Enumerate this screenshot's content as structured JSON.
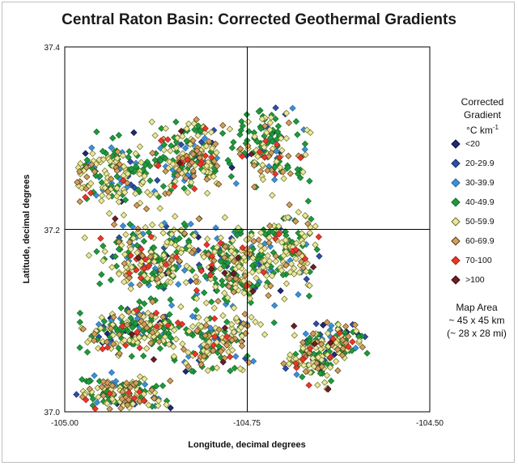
{
  "chart_data": {
    "type": "scatter",
    "title": "Central Raton Basin: Corrected Geothermal Gradients",
    "xlabel": "Longitude, decimal degrees",
    "ylabel": "Latitude, decimal degrees",
    "xlim": [
      -105.0,
      -104.5
    ],
    "ylim": [
      37.0,
      37.4
    ],
    "x_ticks": [
      "-105.00",
      "-104.75",
      "-104.50"
    ],
    "y_ticks": [
      "37.0",
      "37.2",
      "37.4"
    ],
    "reference_lines": {
      "longitude": -104.75,
      "latitude": 37.2
    },
    "legend": {
      "title_line1": "Corrected",
      "title_line2": "Gradient",
      "units_prefix": "°C km",
      "units_sup": "-1",
      "placement": "right"
    },
    "series": [
      {
        "name": "<20",
        "color": "#1f2a7a",
        "edge": "#111133",
        "approx_count": 45
      },
      {
        "name": "20-29.9",
        "color": "#2e4fa8",
        "edge": "#1b2f6a",
        "approx_count": 80
      },
      {
        "name": "30-39.9",
        "color": "#3d8fd6",
        "edge": "#2a6aa3",
        "approx_count": 160
      },
      {
        "name": "40-49.9",
        "color": "#1f9a3c",
        "edge": "#146b28",
        "approx_count": 620
      },
      {
        "name": "50-59.9",
        "color": "#e7e9a0",
        "edge": "#6e6a20",
        "approx_count": 600
      },
      {
        "name": "60-69.9",
        "color": "#cfa062",
        "edge": "#5a3b12",
        "approx_count": 230
      },
      {
        "name": "70-100",
        "color": "#e8382b",
        "edge": "#a4201a",
        "approx_count": 90
      },
      {
        "name": ">100",
        "color": "#6b1f24",
        "edge": "#3a1013",
        "approx_count": 20
      }
    ],
    "note": "Dense scatter of well locations; individual points estimated as clusters."
  },
  "annotation": {
    "line1": "Map Area",
    "line2": "~ 45 x 45 km",
    "line3": "(~ 28 x 28 mi)"
  }
}
